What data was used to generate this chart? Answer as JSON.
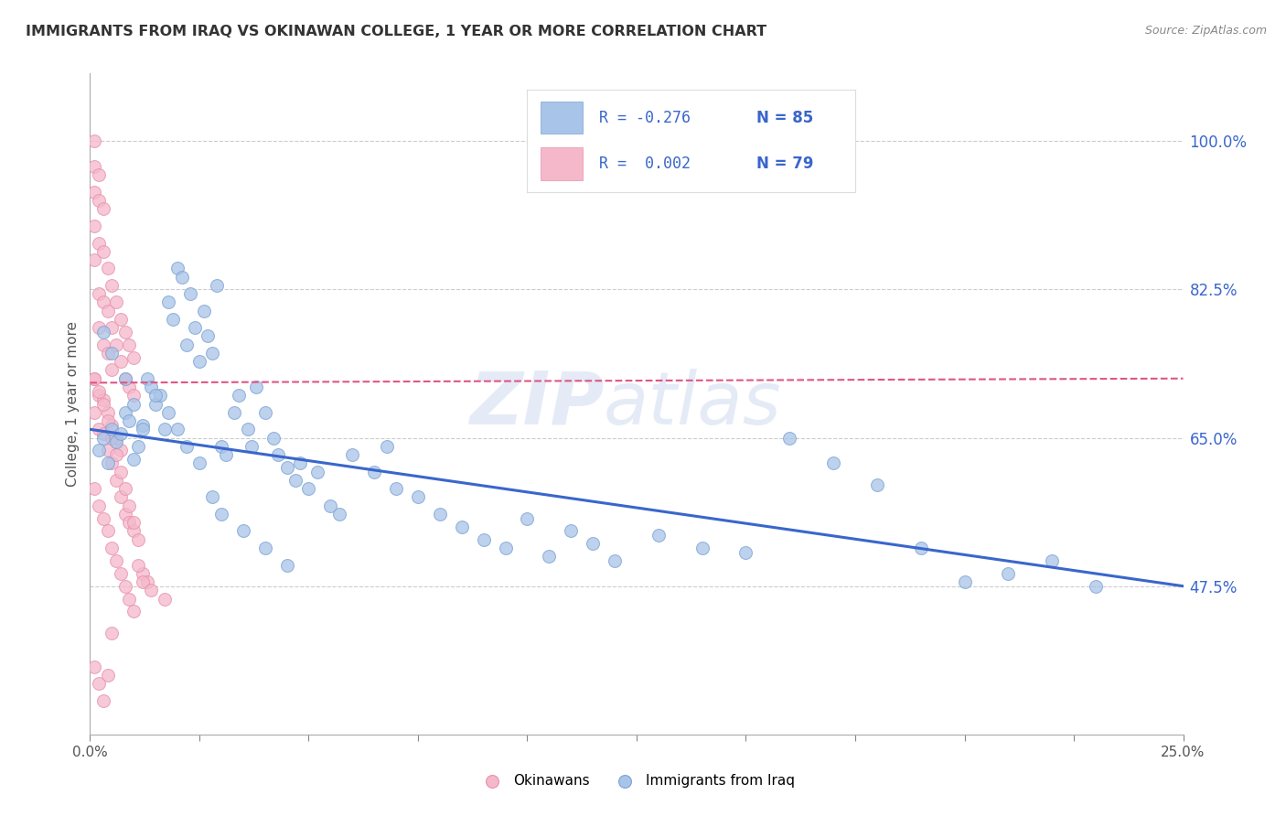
{
  "title": "IMMIGRANTS FROM IRAQ VS OKINAWAN COLLEGE, 1 YEAR OR MORE CORRELATION CHART",
  "source": "Source: ZipAtlas.com",
  "ylabel": "College, 1 year or more",
  "ytick_labels": [
    "100.0%",
    "82.5%",
    "65.0%",
    "47.5%"
  ],
  "ytick_values": [
    1.0,
    0.825,
    0.65,
    0.475
  ],
  "xmin": 0.0,
  "xmax": 0.25,
  "ymin": 0.3,
  "ymax": 1.08,
  "blue_color": "#a8c4e8",
  "pink_color": "#f5b8cb",
  "blue_edge_color": "#7ba3d4",
  "pink_edge_color": "#e891ab",
  "blue_line_color": "#3a66cc",
  "pink_line_color": "#e05585",
  "grid_color": "#cccccc",
  "legend_R_blue": "R = -0.276",
  "legend_N_blue": "N = 85",
  "legend_R_pink": "R =  0.002",
  "legend_N_pink": "N = 79",
  "legend_label_blue": "Immigrants from Iraq",
  "legend_label_pink": "Okinawans",
  "blue_scatter_x": [
    0.002,
    0.003,
    0.004,
    0.005,
    0.006,
    0.007,
    0.008,
    0.009,
    0.01,
    0.011,
    0.012,
    0.013,
    0.014,
    0.015,
    0.016,
    0.017,
    0.018,
    0.019,
    0.02,
    0.021,
    0.022,
    0.023,
    0.024,
    0.025,
    0.026,
    0.027,
    0.028,
    0.029,
    0.03,
    0.031,
    0.033,
    0.034,
    0.036,
    0.037,
    0.038,
    0.04,
    0.042,
    0.043,
    0.045,
    0.047,
    0.048,
    0.05,
    0.052,
    0.055,
    0.057,
    0.06,
    0.065,
    0.068,
    0.07,
    0.075,
    0.08,
    0.085,
    0.09,
    0.095,
    0.1,
    0.105,
    0.11,
    0.115,
    0.12,
    0.13,
    0.14,
    0.15,
    0.16,
    0.17,
    0.18,
    0.19,
    0.2,
    0.21,
    0.22,
    0.23,
    0.003,
    0.005,
    0.008,
    0.01,
    0.012,
    0.015,
    0.018,
    0.02,
    0.022,
    0.025,
    0.028,
    0.03,
    0.035,
    0.04,
    0.045
  ],
  "blue_scatter_y": [
    0.635,
    0.65,
    0.62,
    0.66,
    0.645,
    0.655,
    0.68,
    0.67,
    0.625,
    0.64,
    0.665,
    0.72,
    0.71,
    0.69,
    0.7,
    0.66,
    0.81,
    0.79,
    0.85,
    0.84,
    0.76,
    0.82,
    0.78,
    0.74,
    0.8,
    0.77,
    0.75,
    0.83,
    0.64,
    0.63,
    0.68,
    0.7,
    0.66,
    0.64,
    0.71,
    0.68,
    0.65,
    0.63,
    0.615,
    0.6,
    0.62,
    0.59,
    0.61,
    0.57,
    0.56,
    0.63,
    0.61,
    0.64,
    0.59,
    0.58,
    0.56,
    0.545,
    0.53,
    0.52,
    0.555,
    0.51,
    0.54,
    0.525,
    0.505,
    0.535,
    0.52,
    0.515,
    0.65,
    0.62,
    0.595,
    0.52,
    0.48,
    0.49,
    0.505,
    0.475,
    0.775,
    0.75,
    0.72,
    0.69,
    0.66,
    0.7,
    0.68,
    0.66,
    0.64,
    0.62,
    0.58,
    0.56,
    0.54,
    0.52,
    0.5
  ],
  "pink_scatter_x": [
    0.001,
    0.001,
    0.001,
    0.001,
    0.001,
    0.002,
    0.002,
    0.002,
    0.002,
    0.002,
    0.003,
    0.003,
    0.003,
    0.003,
    0.004,
    0.004,
    0.004,
    0.005,
    0.005,
    0.005,
    0.006,
    0.006,
    0.007,
    0.007,
    0.008,
    0.008,
    0.009,
    0.009,
    0.01,
    0.01,
    0.001,
    0.001,
    0.002,
    0.002,
    0.003,
    0.003,
    0.004,
    0.004,
    0.005,
    0.005,
    0.006,
    0.006,
    0.007,
    0.007,
    0.008,
    0.009,
    0.01,
    0.011,
    0.012,
    0.013,
    0.001,
    0.002,
    0.003,
    0.004,
    0.005,
    0.006,
    0.007,
    0.008,
    0.009,
    0.01,
    0.001,
    0.002,
    0.003,
    0.004,
    0.005,
    0.006,
    0.007,
    0.008,
    0.009,
    0.01,
    0.001,
    0.002,
    0.003,
    0.004,
    0.005,
    0.011,
    0.012,
    0.014,
    0.017
  ],
  "pink_scatter_y": [
    1.0,
    0.97,
    0.94,
    0.9,
    0.86,
    0.96,
    0.93,
    0.88,
    0.82,
    0.78,
    0.92,
    0.87,
    0.81,
    0.76,
    0.85,
    0.8,
    0.75,
    0.83,
    0.78,
    0.73,
    0.81,
    0.76,
    0.79,
    0.74,
    0.775,
    0.72,
    0.76,
    0.71,
    0.745,
    0.7,
    0.72,
    0.68,
    0.7,
    0.66,
    0.695,
    0.655,
    0.68,
    0.635,
    0.665,
    0.62,
    0.65,
    0.6,
    0.635,
    0.58,
    0.56,
    0.55,
    0.54,
    0.53,
    0.49,
    0.48,
    0.59,
    0.57,
    0.555,
    0.54,
    0.52,
    0.505,
    0.49,
    0.475,
    0.46,
    0.445,
    0.72,
    0.705,
    0.69,
    0.67,
    0.65,
    0.63,
    0.61,
    0.59,
    0.57,
    0.55,
    0.38,
    0.36,
    0.34,
    0.37,
    0.42,
    0.5,
    0.48,
    0.47,
    0.46
  ],
  "blue_line_x": [
    0.0,
    0.25
  ],
  "blue_line_y": [
    0.66,
    0.475
  ],
  "pink_line_x": [
    0.0,
    0.25
  ],
  "pink_line_y": [
    0.715,
    0.72
  ],
  "watermark_zip": "ZIP",
  "watermark_atlas": "atlas",
  "background_color": "#ffffff"
}
